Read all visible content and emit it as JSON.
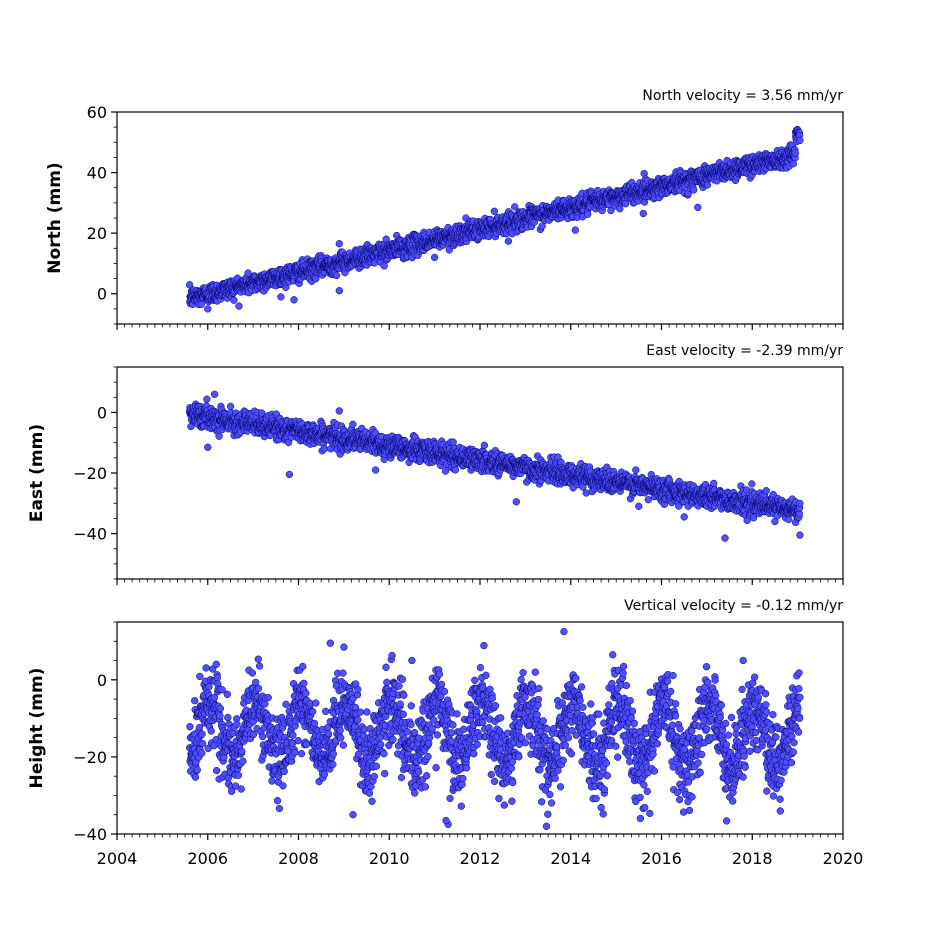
{
  "chart_data": {
    "type": "scatter",
    "x_axis": {
      "range": [
        2004,
        2020
      ],
      "major_ticks": [
        2004,
        2006,
        2008,
        2010,
        2012,
        2014,
        2016,
        2018,
        2020
      ],
      "tick_labels": [
        "2004",
        "2006",
        "2008",
        "2010",
        "2012",
        "2014",
        "2016",
        "2018",
        "2020"
      ],
      "minor_tick_step": 0.1667
    },
    "time_span": {
      "start": 2005.6,
      "end": 2019.05
    },
    "marker": {
      "fill": "#4f4fff",
      "edge": "#000066"
    },
    "panels": [
      {
        "id": "north",
        "title": "North velocity = 3.56 mm/yr",
        "ylabel": "North (mm)",
        "ylim": [
          -10,
          60
        ],
        "yticks": [
          0,
          20,
          40,
          60
        ],
        "ytick_labels": [
          "0",
          "20",
          "40",
          "60"
        ],
        "ytick_minor_step": 5,
        "trend": {
          "velocity_mm_per_yr": 3.56,
          "value_at_start": -1.5
        },
        "scatter_noise_mm": 1.6,
        "late_jump": {
          "after": 2018.95,
          "to": 53
        },
        "outliers": [
          {
            "x": 2006.0,
            "y": -5
          },
          {
            "x": 2007.9,
            "y": -2
          },
          {
            "x": 2008.9,
            "y": 1
          },
          {
            "x": 2008.9,
            "y": 16.5
          },
          {
            "x": 2015.6,
            "y": 26.5
          },
          {
            "x": 2016.8,
            "y": 28.5
          },
          {
            "x": 2014.1,
            "y": 21
          },
          {
            "x": 2011.0,
            "y": 12
          }
        ]
      },
      {
        "id": "east",
        "title": "East velocity = -2.39 mm/yr",
        "ylabel": "East (mm)",
        "ylim": [
          -55,
          15
        ],
        "yticks": [
          -40,
          -20,
          0
        ],
        "ytick_labels": [
          "−40",
          "−20",
          "0"
        ],
        "ytick_minor_step": 5,
        "trend": {
          "velocity_mm_per_yr": -2.39,
          "value_at_start": -0.5
        },
        "scatter_noise_mm": 1.8,
        "outliers": [
          {
            "x": 2006.15,
            "y": 6
          },
          {
            "x": 2006.0,
            "y": -11.5
          },
          {
            "x": 2007.8,
            "y": -20.5
          },
          {
            "x": 2008.9,
            "y": 0.5
          },
          {
            "x": 2009.7,
            "y": -19
          },
          {
            "x": 2012.8,
            "y": -29.5
          },
          {
            "x": 2015.5,
            "y": -31
          },
          {
            "x": 2017.4,
            "y": -41.5
          },
          {
            "x": 2019.05,
            "y": -40.5
          },
          {
            "x": 2016.5,
            "y": -34.5
          },
          {
            "x": 2018.5,
            "y": -36
          }
        ]
      },
      {
        "id": "vertical",
        "title": "Vertical velocity = -0.12 mm/yr",
        "ylabel": "Height (mm)",
        "ylim": [
          -40,
          15
        ],
        "yticks": [
          -40,
          -20,
          0
        ],
        "ytick_labels": [
          "−40",
          "−20",
          "0"
        ],
        "ytick_minor_step": 5,
        "trend": {
          "velocity_mm_per_yr": -0.12,
          "value_at_start": -13
        },
        "seasonal_amplitude_mm": 8,
        "scatter_noise_mm": 5,
        "outliers": [
          {
            "x": 2013.85,
            "y": 12.5
          },
          {
            "x": 2008.7,
            "y": 9.5
          },
          {
            "x": 2009.0,
            "y": 8.5
          },
          {
            "x": 2011.3,
            "y": -37.5
          },
          {
            "x": 2011.25,
            "y": -36.5
          },
          {
            "x": 2009.2,
            "y": -35
          },
          {
            "x": 2017.8,
            "y": 5
          },
          {
            "x": 2010.5,
            "y": 5
          }
        ]
      }
    ]
  }
}
